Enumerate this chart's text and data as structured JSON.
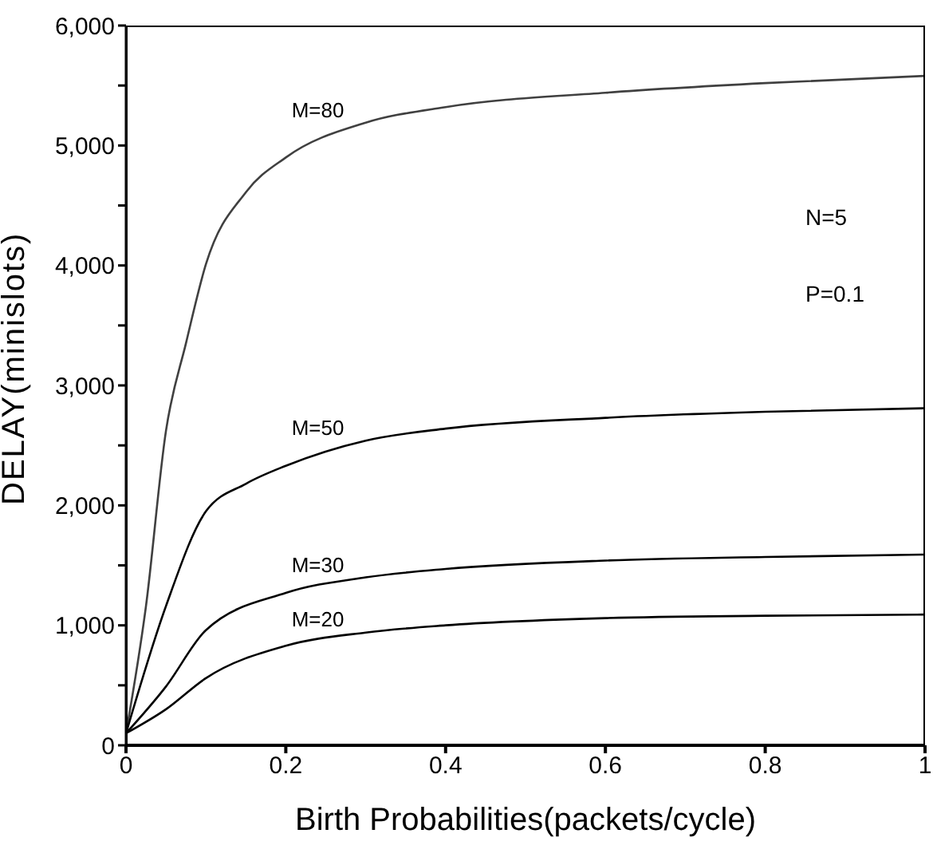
{
  "chart_data": {
    "type": "line",
    "xlabel": "Birth Probabilities(packets/cycle)",
    "ylabel": "DELAY(minislots)",
    "xlim": [
      0,
      1
    ],
    "xticks": [
      0,
      0.2,
      0.4,
      0.6,
      0.8,
      1
    ],
    "ylim": [
      0,
      6000
    ],
    "yticks": [
      0,
      {
        "value": 500,
        "label": null
      },
      {
        "value": 1000,
        "label": "1,000"
      },
      {
        "value": 1500,
        "label": null
      },
      {
        "value": 2000,
        "label": "2,000"
      },
      {
        "value": 2500,
        "label": null
      },
      {
        "value": 3000,
        "label": "3,000"
      },
      {
        "value": 3500,
        "label": null
      },
      {
        "value": 4000,
        "label": "4,000"
      },
      {
        "value": 4500,
        "label": null
      },
      {
        "value": 5000,
        "label": "5,000"
      },
      {
        "value": 5500,
        "label": null
      },
      {
        "value": 6000,
        "label": "6,000"
      }
    ],
    "grid": false,
    "legend": false,
    "marker": "none",
    "line_style": "solid",
    "series": [
      {
        "name": "M=80",
        "color": "#404040",
        "x": [
          0,
          0.025,
          0.05,
          0.075,
          0.1,
          0.15,
          0.2,
          0.3,
          0.4,
          0.6,
          0.8,
          1
        ],
        "values": [
          100,
          1160,
          2620,
          3350,
          4010,
          4610,
          4900,
          5190,
          5320,
          5440,
          5520,
          5580
        ]
      },
      {
        "name": "M=50",
        "color": "#000000",
        "x": [
          0,
          0.05,
          0.1,
          0.15,
          0.2,
          0.3,
          0.4,
          0.6,
          0.8,
          1
        ],
        "values": [
          100,
          1160,
          1950,
          2180,
          2330,
          2540,
          2640,
          2730,
          2780,
          2810
        ]
      },
      {
        "name": "M=30",
        "color": "#000000",
        "x": [
          0,
          0.05,
          0.1,
          0.2,
          0.3,
          0.4,
          0.6,
          0.8,
          1
        ],
        "values": [
          100,
          490,
          960,
          1270,
          1400,
          1470,
          1540,
          1570,
          1590
        ]
      },
      {
        "name": "M=20",
        "color": "#000000",
        "x": [
          0,
          0.05,
          0.1,
          0.2,
          0.3,
          0.4,
          0.6,
          0.8,
          1
        ],
        "values": [
          100,
          300,
          560,
          830,
          940,
          1000,
          1060,
          1080,
          1090
        ]
      }
    ],
    "annotations": [
      "N=5",
      "P=0.1"
    ]
  }
}
